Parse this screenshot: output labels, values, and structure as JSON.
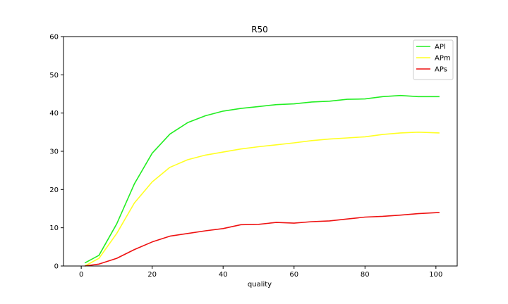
{
  "chart_data": {
    "type": "line",
    "title": "R50",
    "xlabel": "quality",
    "ylabel": "",
    "xlim": [
      -5,
      106
    ],
    "ylim": [
      0,
      60
    ],
    "xticks": [
      0,
      20,
      40,
      60,
      80,
      100
    ],
    "yticks": [
      0,
      10,
      20,
      30,
      40,
      50,
      60
    ],
    "grid": false,
    "legend_position": "top-right",
    "x": [
      1,
      5,
      10,
      15,
      20,
      25,
      30,
      35,
      40,
      45,
      50,
      55,
      60,
      65,
      70,
      75,
      80,
      85,
      90,
      95,
      101
    ],
    "series": [
      {
        "name": "APl",
        "color": "#22ee22",
        "values": [
          0.8,
          2.8,
          11.0,
          21.5,
          29.5,
          34.5,
          37.5,
          39.3,
          40.5,
          41.2,
          41.7,
          42.2,
          42.4,
          42.9,
          43.1,
          43.6,
          43.7,
          44.3,
          44.6,
          44.3,
          44.3
        ]
      },
      {
        "name": "APm",
        "color": "#ffff22",
        "values": [
          0.0,
          2.0,
          8.5,
          16.5,
          22.0,
          25.8,
          27.8,
          29.0,
          29.8,
          30.6,
          31.2,
          31.7,
          32.2,
          32.8,
          33.2,
          33.5,
          33.8,
          34.4,
          34.8,
          35.0,
          34.8
        ]
      },
      {
        "name": "APs",
        "color": "#ee1111",
        "values": [
          0.0,
          0.5,
          2.0,
          4.3,
          6.3,
          7.8,
          8.5,
          9.2,
          9.8,
          10.8,
          10.9,
          11.4,
          11.2,
          11.6,
          11.8,
          12.3,
          12.8,
          13.0,
          13.3,
          13.7,
          14.0
        ]
      }
    ]
  }
}
